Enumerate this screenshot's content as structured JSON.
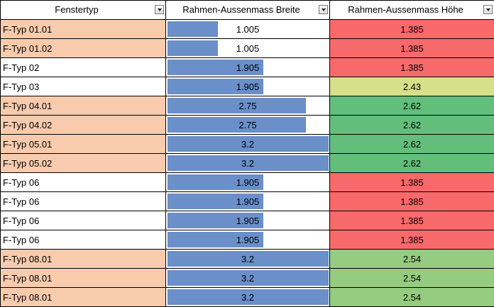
{
  "sheet": {
    "columns": [
      {
        "label": "Fenstertyp"
      },
      {
        "label": "Rahmen-Aussenmass Breite"
      },
      {
        "label": "Rahmen-Aussenmass Höhe"
      }
    ],
    "width_scale_max": 3.2,
    "colors": {
      "type_highlight": "#f8cbad",
      "type_plain": "#ffffff",
      "bar": "#6a8fc9",
      "height_red": "#f8696b",
      "height_yellow": "#d6e08a",
      "height_green_dark": "#63be7b",
      "height_green_light": "#95cc7f"
    },
    "rows": [
      {
        "type": "F-Typ 01.01",
        "width": "1.005",
        "height": "1.385",
        "type_color": "#f8cbad",
        "height_color": "#f8696b"
      },
      {
        "type": "F-Typ 01.02",
        "width": "1.005",
        "height": "1.385",
        "type_color": "#f8cbad",
        "height_color": "#f8696b"
      },
      {
        "type": "F-Typ 02",
        "width": "1.905",
        "height": "1.385",
        "type_color": "#ffffff",
        "height_color": "#f8696b"
      },
      {
        "type": "F-Typ 03",
        "width": "1.905",
        "height": "2.43",
        "type_color": "#ffffff",
        "height_color": "#d6e08a"
      },
      {
        "type": "F-Typ 04.01",
        "width": "2.75",
        "height": "2.62",
        "type_color": "#f8cbad",
        "height_color": "#63be7b"
      },
      {
        "type": "F-Typ 04.02",
        "width": "2.75",
        "height": "2.62",
        "type_color": "#f8cbad",
        "height_color": "#63be7b"
      },
      {
        "type": "F-Typ 05.01",
        "width": "3.2",
        "height": "2.62",
        "type_color": "#f8cbad",
        "height_color": "#63be7b"
      },
      {
        "type": "F-Typ 05.02",
        "width": "3.2",
        "height": "2.62",
        "type_color": "#f8cbad",
        "height_color": "#63be7b"
      },
      {
        "type": "F-Typ 06",
        "width": "1.905",
        "height": "1.385",
        "type_color": "#ffffff",
        "height_color": "#f8696b"
      },
      {
        "type": "F-Typ 06",
        "width": "1.905",
        "height": "1.385",
        "type_color": "#ffffff",
        "height_color": "#f8696b"
      },
      {
        "type": "F-Typ 06",
        "width": "1.905",
        "height": "1.385",
        "type_color": "#ffffff",
        "height_color": "#f8696b"
      },
      {
        "type": "F-Typ 06",
        "width": "1.905",
        "height": "1.385",
        "type_color": "#ffffff",
        "height_color": "#f8696b"
      },
      {
        "type": "F-Typ 08.01",
        "width": "3.2",
        "height": "2.54",
        "type_color": "#f8cbad",
        "height_color": "#95cc7f"
      },
      {
        "type": "F-Typ 08.01",
        "width": "3.2",
        "height": "2.54",
        "type_color": "#f8cbad",
        "height_color": "#95cc7f"
      },
      {
        "type": "F-Typ 08.01",
        "width": "3.2",
        "height": "2.54",
        "type_color": "#f8cbad",
        "height_color": "#95cc7f"
      }
    ]
  }
}
